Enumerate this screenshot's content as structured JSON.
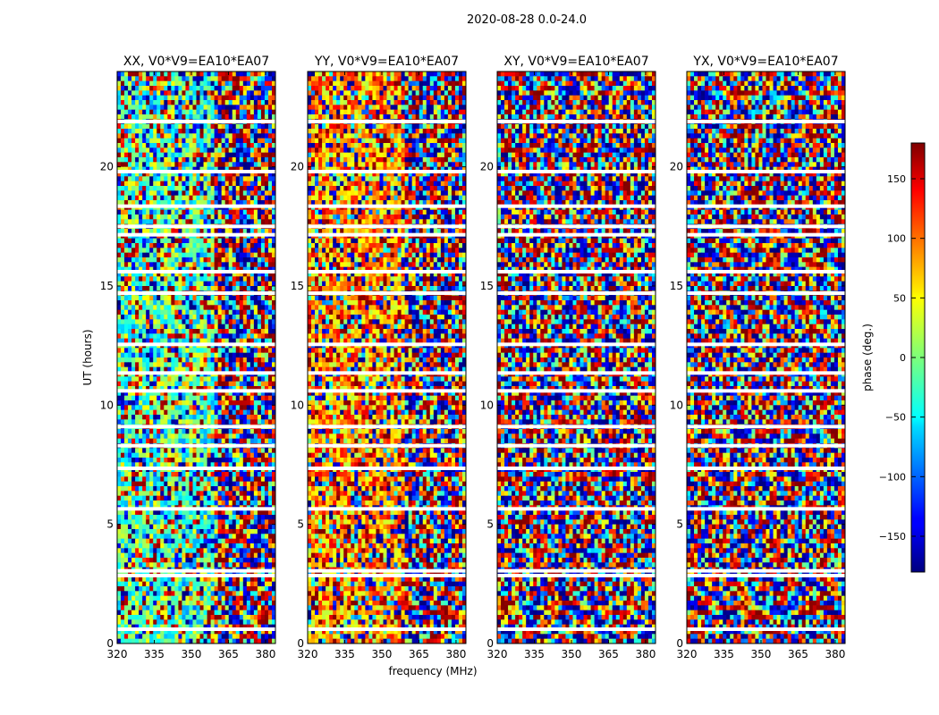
{
  "figure": {
    "suptitle": "2020-08-28 0.0-24.0",
    "xlabel": "frequency (MHz)",
    "ylabel": "UT (hours)"
  },
  "chart_data": {
    "type": "heatmap",
    "title": "2020-08-28 0.0-24.0",
    "xlabel": "frequency (MHz)",
    "ylabel": "UT (hours)",
    "xlim": [
      320,
      384
    ],
    "ylim": [
      0,
      24
    ],
    "xticks": [
      320,
      335,
      350,
      365,
      380
    ],
    "yticks": [
      0,
      5,
      10,
      15,
      20
    ],
    "panels": [
      {
        "title": "XX, V0*V9=EA10*EA07",
        "polarization": "XX",
        "baseline": "V0*V9=EA10*EA07"
      },
      {
        "title": "YY, V0*V9=EA10*EA07",
        "polarization": "YY",
        "baseline": "V0*V9=EA10*EA07"
      },
      {
        "title": "XY, V0*V9=EA10*EA07",
        "polarization": "XY",
        "baseline": "V0*V9=EA10*EA07"
      },
      {
        "title": "YX, V0*V9=EA10*EA07",
        "polarization": "YX",
        "baseline": "V0*V9=EA10*EA07"
      }
    ],
    "colorbar": {
      "label": "phase (deg.)",
      "range": [
        -180,
        180
      ],
      "ticks": [
        -150,
        -100,
        -50,
        0,
        50,
        100,
        150
      ],
      "colormap": "jet"
    },
    "data_gaps_hours": [
      0.6,
      2.85,
      3.05,
      5.65,
      7.35,
      8.3,
      9.1,
      10.6,
      11.35,
      12.55,
      14.7,
      15.6,
      17.15,
      17.5,
      18.35,
      19.8,
      21.9
    ]
  }
}
